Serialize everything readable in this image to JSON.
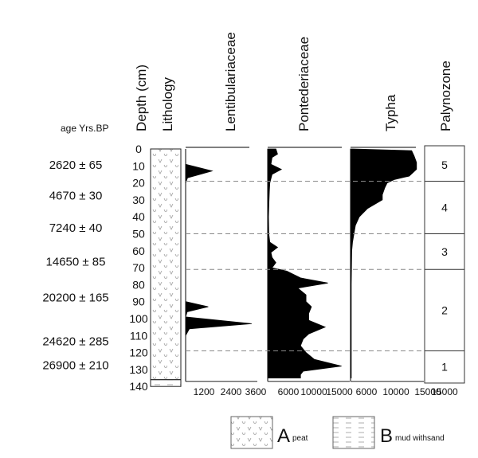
{
  "chart_data": {
    "type": "area",
    "depth_axis": {
      "label": "Depth (cm)",
      "ticks": [
        0,
        10,
        20,
        30,
        40,
        50,
        60,
        70,
        80,
        90,
        100,
        110,
        120,
        130,
        140
      ],
      "range": [
        0,
        140
      ]
    },
    "age_header": "age Yrs.BP",
    "ages": [
      {
        "label": "2620 ± 65",
        "depth": 9
      },
      {
        "label": "4670 ± 30",
        "depth": 27
      },
      {
        "label": "7240 ± 40",
        "depth": 46
      },
      {
        "label": "14650 ± 85",
        "depth": 66
      },
      {
        "label": "20200 ± 165",
        "depth": 87
      },
      {
        "label": "24620 ± 285",
        "depth": 113
      },
      {
        "label": "26900 ± 210",
        "depth": 127
      }
    ],
    "lithology": {
      "label": "Lithology",
      "units": [
        {
          "code": "A",
          "name": "peat",
          "from": 0,
          "to": 136
        },
        {
          "code": "B",
          "name": "mud withsand",
          "from": 136,
          "to": 140
        }
      ]
    },
    "series": [
      {
        "name": "Lentibulariaceae",
        "xticks": [
          "1200",
          "2400",
          "3600"
        ],
        "xmax": 3800,
        "points": [
          [
            0,
            0
          ],
          [
            5,
            0
          ],
          [
            9,
            0
          ],
          [
            13,
            1400
          ],
          [
            17,
            100
          ],
          [
            20,
            0
          ],
          [
            30,
            0
          ],
          [
            50,
            0
          ],
          [
            70,
            0
          ],
          [
            88,
            0
          ],
          [
            90,
            0
          ],
          [
            93,
            1200
          ],
          [
            96,
            80
          ],
          [
            99,
            0
          ],
          [
            103,
            3500
          ],
          [
            106,
            200
          ],
          [
            110,
            0
          ],
          [
            120,
            0
          ],
          [
            137,
            0
          ]
        ]
      },
      {
        "name": "Pontederiaceae",
        "xticks": [
          "6000",
          "10000",
          "15000"
        ],
        "xmax": 15000,
        "points": [
          [
            0,
            1500
          ],
          [
            3,
            1800
          ],
          [
            5,
            800
          ],
          [
            9,
            600
          ],
          [
            12,
            2500
          ],
          [
            15,
            800
          ],
          [
            20,
            400
          ],
          [
            25,
            300
          ],
          [
            30,
            250
          ],
          [
            40,
            150
          ],
          [
            50,
            200
          ],
          [
            55,
            400
          ],
          [
            58,
            1800
          ],
          [
            61,
            600
          ],
          [
            64,
            800
          ],
          [
            67,
            1500
          ],
          [
            70,
            800
          ],
          [
            72,
            3500
          ],
          [
            76,
            6000
          ],
          [
            79,
            11000
          ],
          [
            82,
            5500
          ],
          [
            86,
            7000
          ],
          [
            90,
            7000
          ],
          [
            93,
            8000
          ],
          [
            97,
            7500
          ],
          [
            101,
            7500
          ],
          [
            105,
            10500
          ],
          [
            109,
            7500
          ],
          [
            112,
            6500
          ],
          [
            116,
            6000
          ],
          [
            120,
            7000
          ],
          [
            124,
            8500
          ],
          [
            128,
            13500
          ],
          [
            131,
            6500
          ],
          [
            133,
            6000
          ],
          [
            135,
            6000
          ]
        ]
      },
      {
        "name": "Typha",
        "xticks": [
          "6000",
          "10000",
          "15000"
        ],
        "xmax": 15000,
        "points": [
          [
            0,
            500
          ],
          [
            1,
            12500
          ],
          [
            4,
            13000
          ],
          [
            8,
            13500
          ],
          [
            12,
            13500
          ],
          [
            16,
            12000
          ],
          [
            18,
            9000
          ],
          [
            20,
            7500
          ],
          [
            23,
            7000
          ],
          [
            27,
            6500
          ],
          [
            30,
            6500
          ],
          [
            35,
            3500
          ],
          [
            38,
            2500
          ],
          [
            40,
            1800
          ],
          [
            45,
            1000
          ],
          [
            50,
            700
          ],
          [
            55,
            400
          ],
          [
            60,
            250
          ],
          [
            70,
            200
          ],
          [
            80,
            150
          ],
          [
            100,
            150
          ],
          [
            120,
            150
          ],
          [
            135,
            150
          ]
        ]
      }
    ],
    "palynozones": {
      "label": "Palynozone",
      "zones": [
        {
          "name": "5",
          "from": 0,
          "to": 19
        },
        {
          "name": "4",
          "from": 19,
          "to": 50
        },
        {
          "name": "3",
          "from": 50,
          "to": 71
        },
        {
          "name": "2",
          "from": 71,
          "to": 119
        },
        {
          "name": "1",
          "from": 119,
          "to": 138
        }
      ]
    },
    "zone_boundaries": [
      19,
      50,
      71,
      119
    ],
    "legend": [
      {
        "code": "A",
        "text": "peat",
        "pattern": "peat"
      },
      {
        "code": "B",
        "text": "mud withsand",
        "pattern": "mud"
      }
    ],
    "colors": {
      "fill": "#000000",
      "line": "#000000",
      "dash": "#8a8a8a"
    }
  }
}
